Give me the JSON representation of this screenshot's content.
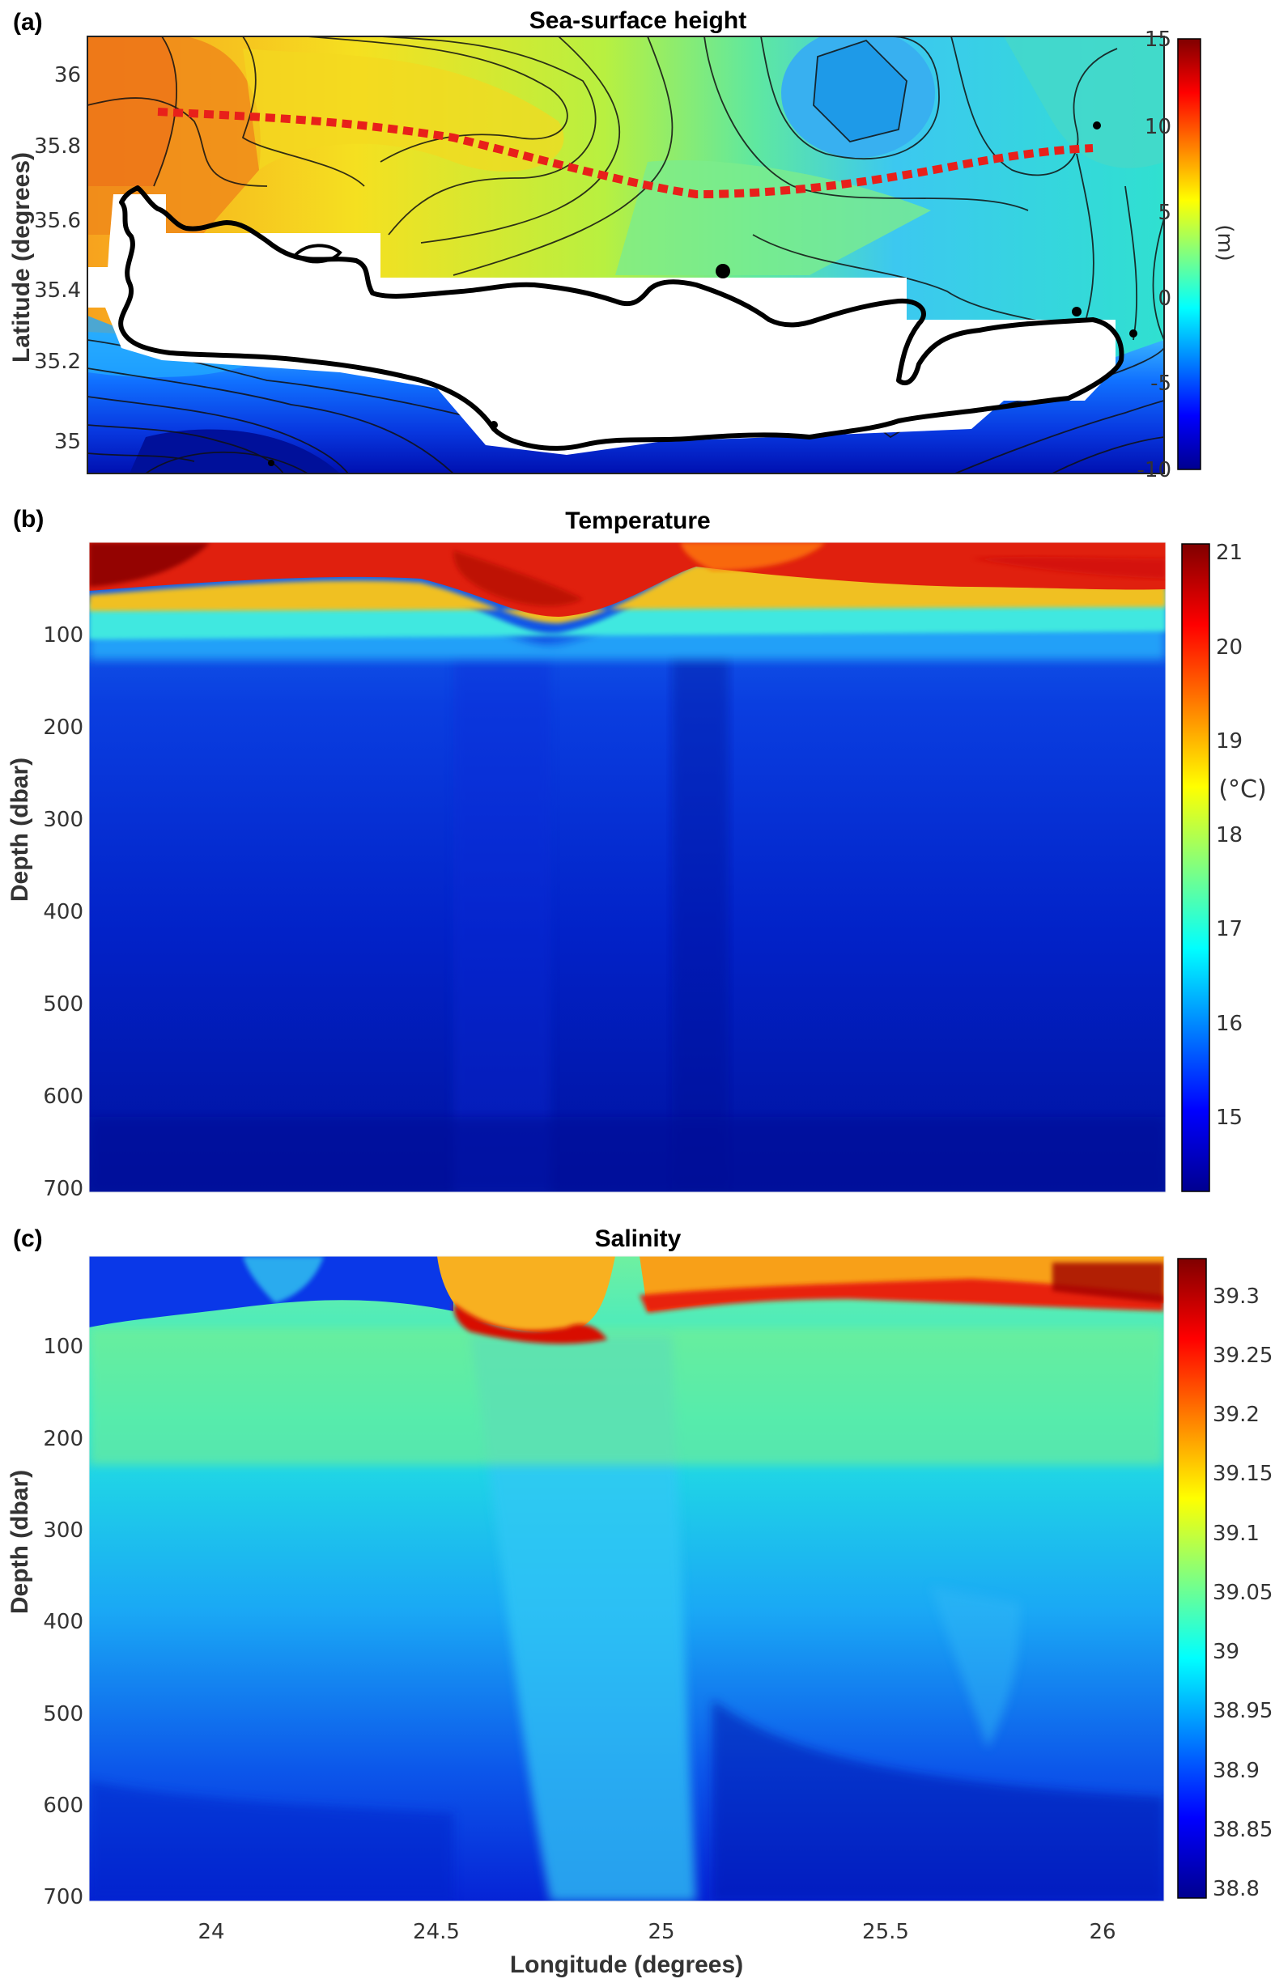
{
  "colors": {
    "land": "#ffffff",
    "coastline": "#000000",
    "transect": "#e8201a",
    "colormap": [
      "#00008f",
      "#0000ff",
      "#0080ff",
      "#00ffff",
      "#80ff80",
      "#ffff00",
      "#ff8000",
      "#ff0000",
      "#800000"
    ]
  },
  "chart_data": [
    {
      "type": "heatmap",
      "panel_label": "(a)",
      "title": "Sea-surface height",
      "xlabel": "",
      "ylabel": "Latitude (degrees)",
      "ylim": [
        34.93,
        36.1
      ],
      "y_ticks": [
        "35",
        "35.2",
        "35.4",
        "35.6",
        "35.8",
        "36"
      ],
      "colorbar": {
        "label": "(m)",
        "range": [
          -10,
          15
        ],
        "ticks": [
          "15",
          "10",
          "5",
          "0",
          "-5",
          "-10"
        ]
      },
      "contour_levels": [
        -9,
        -7.5,
        -6,
        -4.5,
        -3,
        -1.5,
        0,
        1.5,
        3,
        4.5,
        6,
        7.5,
        9
      ],
      "features": [
        "filled contours",
        "black coastline (Crete)",
        "red dotted transect line"
      ]
    },
    {
      "type": "heatmap",
      "panel_label": "(b)",
      "title": "Temperature",
      "xlabel": "",
      "ylabel": "Depth (dbar)",
      "ylim": [
        700,
        0
      ],
      "y_ticks": [
        "100",
        "200",
        "300",
        "400",
        "500",
        "600",
        "700"
      ],
      "colorbar": {
        "label": "(°C)",
        "range": [
          14.3,
          21.1
        ],
        "ticks": [
          "21",
          "20",
          "19",
          "18",
          "17",
          "16",
          "15"
        ]
      },
      "surface_mixed_layer": {
        "depth_dbar": 60,
        "value_range": [
          20,
          21
        ]
      },
      "deep_value_range": [
        14.4,
        15.6
      ]
    },
    {
      "type": "heatmap",
      "panel_label": "(c)",
      "title": "Salinity",
      "xlabel": "Longitude (degrees)",
      "ylabel": "Depth (dbar)",
      "xlim": [
        23.73,
        26.12
      ],
      "x_ticks": [
        "24",
        "24.5",
        "25",
        "25.5",
        "26"
      ],
      "ylim": [
        700,
        0
      ],
      "y_ticks": [
        "100",
        "200",
        "300",
        "400",
        "500",
        "600",
        "700"
      ],
      "colorbar": {
        "label": "",
        "range": [
          38.8,
          39.34
        ],
        "ticks": [
          "39.3",
          "39.25",
          "39.2",
          "39.15",
          "39.1",
          "39.05",
          "39",
          "38.95",
          "38.9",
          "38.85",
          "38.8"
        ]
      },
      "surface_layer": {
        "depth_dbar": 60,
        "west_of_24_5": 38.88,
        "east_of_24_5": [
          39.15,
          39.3
        ]
      },
      "deep_value_range": [
        38.82,
        39.0
      ]
    }
  ]
}
